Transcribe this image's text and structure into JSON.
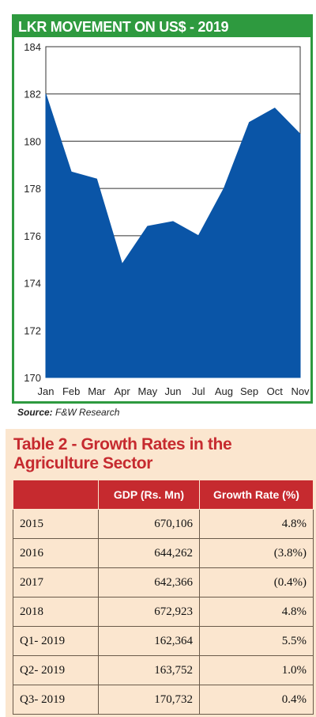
{
  "chart_data": {
    "type": "area",
    "title": "LKR MOVEMENT ON US$ - 2019",
    "categories": [
      "Jan",
      "Feb",
      "Mar",
      "Apr",
      "May",
      "Jun",
      "Jul",
      "Aug",
      "Sep",
      "Oct",
      "Nov"
    ],
    "values": [
      182.0,
      178.7,
      178.4,
      174.8,
      176.4,
      176.6,
      176.0,
      178.0,
      180.8,
      181.4,
      180.3
    ],
    "y_ticks": [
      "184",
      "182",
      "180",
      "178",
      "176",
      "174",
      "172",
      "170"
    ],
    "ylim": [
      170,
      184
    ],
    "grid": true,
    "color": "#0a55a7",
    "source_label": "Source:",
    "source_text": "F&W Research"
  },
  "table": {
    "title": "Table 2 - Growth Rates in the Agriculture Sector",
    "headers": [
      "",
      "GDP (Rs. Mn)",
      "Growth Rate (%)"
    ],
    "rows": [
      {
        "year": "2015",
        "gdp": "670,106",
        "rate": "4.8%"
      },
      {
        "year": "2016",
        "gdp": "644,262",
        "rate": "(3.8%)"
      },
      {
        "year": "2017",
        "gdp": "642,366",
        "rate": "(0.4%)"
      },
      {
        "year": "2018",
        "gdp": "672,923",
        "rate": "4.8%"
      },
      {
        "year": "Q1- 2019",
        "gdp": "162,364",
        "rate": "5.5%"
      },
      {
        "year": "Q2- 2019",
        "gdp": "163,752",
        "rate": "1.0%"
      },
      {
        "year": "Q3- 2019",
        "gdp": "170,732",
        "rate": "0.4%"
      }
    ]
  }
}
